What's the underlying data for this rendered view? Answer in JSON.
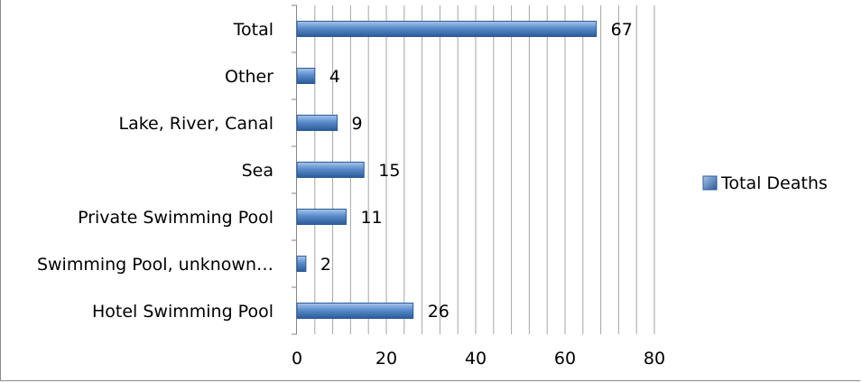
{
  "chart_data": {
    "type": "bar",
    "orientation": "horizontal",
    "categories": [
      "Total",
      "Other",
      "Lake, River, Canal",
      "Sea",
      "Private Swimming Pool",
      "Swimming Pool, unknown…",
      "Hotel Swimming Pool"
    ],
    "series": [
      {
        "name": "Total Deaths",
        "values": [
          67,
          4,
          9,
          15,
          11,
          2,
          26
        ]
      }
    ],
    "xlim": [
      0,
      80
    ],
    "xticks": [
      "0",
      "20",
      "40",
      "60",
      "80"
    ],
    "grid": "vertical",
    "legend": "right",
    "colors": {
      "bar": "#4a7ebb",
      "bar_light": "#9bbbe6",
      "bar_dark": "#2c5c98",
      "grid": "#a6a6a6"
    }
  }
}
